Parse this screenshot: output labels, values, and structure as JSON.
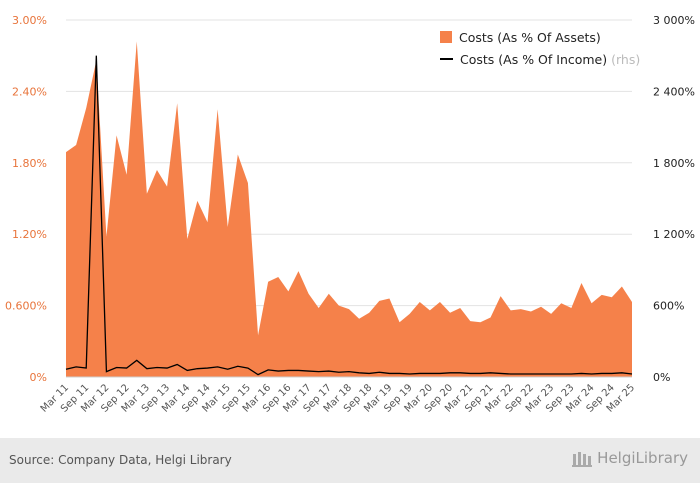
{
  "chart_data": {
    "type": "area",
    "x": [
      "Mar 11",
      "Jun 11",
      "Sep 11",
      "Dec 11",
      "Mar 12",
      "Jun 12",
      "Sep 12",
      "Dec 12",
      "Mar 13",
      "Jun 13",
      "Sep 13",
      "Dec 13",
      "Mar 14",
      "Jun 14",
      "Sep 14",
      "Dec 14",
      "Mar 15",
      "Jun 15",
      "Sep 15",
      "Dec 15",
      "Mar 16",
      "Jun 16",
      "Sep 16",
      "Dec 16",
      "Mar 17",
      "Jun 17",
      "Sep 17",
      "Dec 17",
      "Mar 18",
      "Jun 18",
      "Sep 18",
      "Dec 18",
      "Mar 19",
      "Jun 19",
      "Sep 19",
      "Dec 19",
      "Mar 20",
      "Jun 20",
      "Sep 20",
      "Dec 20",
      "Mar 21",
      "Jun 21",
      "Sep 21",
      "Dec 21",
      "Mar 22",
      "Jun 22",
      "Sep 22",
      "Dec 22",
      "Mar 23",
      "Jun 23",
      "Sep 23",
      "Dec 23",
      "Mar 24",
      "Jun 24",
      "Sep 24",
      "Dec 24",
      "Mar 25"
    ],
    "xtick_labels": [
      "Mar 11",
      "Sep 11",
      "Mar 12",
      "Sep 12",
      "Mar 13",
      "Sep 13",
      "Mar 14",
      "Sep 14",
      "Mar 15",
      "Sep 15",
      "Mar 16",
      "Sep 16",
      "Mar 17",
      "Sep 17",
      "Mar 18",
      "Sep 18",
      "Mar 19",
      "Sep 19",
      "Mar 20",
      "Sep 20",
      "Mar 21",
      "Sep 21",
      "Mar 22",
      "Sep 22",
      "Mar 23",
      "Sep 23",
      "Mar 24",
      "Sep 24",
      "Mar 25"
    ],
    "series": [
      {
        "name": "Costs (As % Of Assets)",
        "axis": "left",
        "style": "area",
        "color": "#f5814a",
        "values": [
          1.89,
          1.95,
          2.26,
          2.66,
          1.18,
          2.03,
          1.7,
          2.82,
          1.54,
          1.74,
          1.6,
          2.3,
          1.16,
          1.48,
          1.3,
          2.25,
          1.26,
          1.87,
          1.63,
          0.35,
          0.8,
          0.84,
          0.72,
          0.89,
          0.7,
          0.58,
          0.7,
          0.6,
          0.57,
          0.49,
          0.54,
          0.64,
          0.66,
          0.46,
          0.53,
          0.63,
          0.56,
          0.63,
          0.54,
          0.58,
          0.47,
          0.46,
          0.5,
          0.68,
          0.56,
          0.57,
          0.55,
          0.59,
          0.53,
          0.62,
          0.58,
          0.79,
          0.62,
          0.69,
          0.67,
          0.76,
          0.63
        ]
      },
      {
        "name": "Costs (As % Of Income)",
        "axis": "right",
        "style": "line",
        "color": "#000000",
        "values": [
          65,
          85,
          75,
          2700,
          45,
          80,
          75,
          140,
          70,
          80,
          75,
          105,
          55,
          70,
          75,
          85,
          65,
          90,
          75,
          20,
          60,
          50,
          55,
          55,
          50,
          45,
          50,
          40,
          45,
          35,
          30,
          40,
          30,
          30,
          25,
          30,
          30,
          30,
          35,
          35,
          30,
          30,
          35,
          30,
          25,
          25,
          25,
          25,
          25,
          25,
          25,
          30,
          25,
          30,
          30,
          35,
          25
        ]
      }
    ],
    "left_axis": {
      "ylim": [
        0,
        3.0
      ],
      "ticks": [
        "0%",
        "0.600%",
        "1.20%",
        "1.80%",
        "2.40%",
        "3.00%"
      ]
    },
    "right_axis": {
      "ylim": [
        0,
        3000
      ],
      "ticks": [
        "0%",
        "600%",
        "1 200%",
        "1 800%",
        "2 400%",
        "3 000%"
      ],
      "label": "rhs"
    },
    "legend_position": "top-right",
    "grid": true
  },
  "legend": {
    "area_label": "Costs (As % Of Assets)",
    "line_label": "Costs (As % Of Income)",
    "line_axis_note": "(rhs)"
  },
  "footer": {
    "source": "Source: Company Data, Helgi Library",
    "brand": "HelgiLibrary"
  }
}
